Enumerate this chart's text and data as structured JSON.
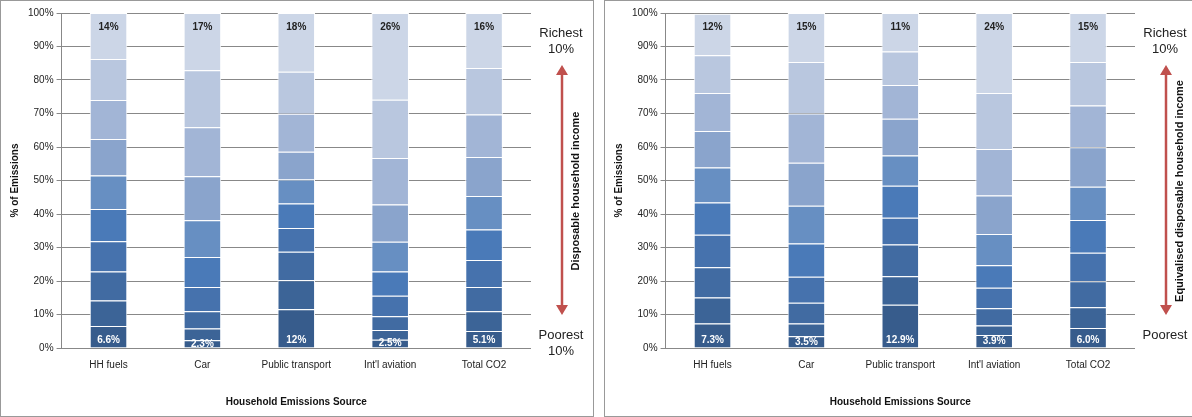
{
  "chart_data": [
    {
      "type": "bar",
      "stacked": true,
      "xlabel": "Household Emissions Source",
      "ylabel": "% of Emissions",
      "y2label": "Disposable household income",
      "annotations": [
        "Richest 10%",
        "Poorest 10%"
      ],
      "categories": [
        "HH fuels",
        "Car",
        "Public transport",
        "Int'l aviation",
        "Total CO2"
      ],
      "ylim": [
        0,
        100
      ],
      "yticks": [
        {
          "value": 0,
          "label": "0%"
        },
        {
          "value": 10,
          "label": "10%"
        },
        {
          "value": 20,
          "label": "20%"
        },
        {
          "value": 30,
          "label": "30%"
        },
        {
          "value": 40,
          "label": "40%"
        },
        {
          "value": 50,
          "label": "50%"
        },
        {
          "value": 60,
          "label": "60%"
        },
        {
          "value": 70,
          "label": "70%"
        },
        {
          "value": 80,
          "label": "80%"
        },
        {
          "value": 90,
          "label": "90%"
        },
        {
          "value": 100,
          "label": "100%"
        }
      ],
      "grid": "y",
      "legend": false,
      "series": [
        {
          "color": "#375c8c",
          "values": [
            6.6,
            2.3,
            11.6,
            2.5,
            5.1
          ],
          "value_labels": [
            "6.6%",
            "2.3%",
            "12%",
            "2.5%",
            "5.1%"
          ]
        },
        {
          "color": "#3c6497",
          "values": [
            7.6,
            3.5,
            8.6,
            2.9,
            5.9
          ]
        },
        {
          "color": "#416ba2",
          "values": [
            8.6,
            5.2,
            8.5,
            4.1,
            7.2
          ]
        },
        {
          "color": "#4672ad",
          "values": [
            9.1,
            7.2,
            7.1,
            6.1,
            8.1
          ]
        },
        {
          "color": "#4a7ab8",
          "values": [
            9.6,
            9.0,
            7.3,
            7.2,
            9.1
          ]
        },
        {
          "color": "#678fc2",
          "values": [
            10.0,
            10.9,
            7.2,
            8.9,
            10.0
          ]
        },
        {
          "color": "#8aa4cc",
          "values": [
            10.9,
            13.2,
            8.3,
            11.1,
            11.6
          ]
        },
        {
          "color": "#a2b5d6",
          "values": [
            11.6,
            14.6,
            11.3,
            13.9,
            12.7
          ]
        },
        {
          "color": "#b9c7df",
          "values": [
            12.3,
            17.0,
            12.6,
            17.4,
            13.9
          ]
        },
        {
          "color": "#ccd6e7",
          "values": [
            13.7,
            17.1,
            17.5,
            25.9,
            16.4
          ],
          "value_labels": [
            "14%",
            "17%",
            "18%",
            "26%",
            "16%"
          ]
        }
      ]
    },
    {
      "type": "bar",
      "stacked": true,
      "xlabel": "Household Emissions Source",
      "ylabel": "% of Emissions",
      "y2label": "Equivalised disposable household income",
      "annotations": [
        "Richest 10%",
        "Poorest"
      ],
      "categories": [
        "HH fuels",
        "Car",
        "Public transport",
        "Int'l aviation",
        "Total CO2"
      ],
      "ylim": [
        0,
        100
      ],
      "yticks": [
        {
          "value": 0,
          "label": "0%"
        },
        {
          "value": 10,
          "label": "10%"
        },
        {
          "value": 20,
          "label": "20%"
        },
        {
          "value": 30,
          "label": "30%"
        },
        {
          "value": 40,
          "label": "40%"
        },
        {
          "value": 50,
          "label": "50%"
        },
        {
          "value": 60,
          "label": "60%"
        },
        {
          "value": 70,
          "label": "70%"
        },
        {
          "value": 80,
          "label": "80%"
        },
        {
          "value": 90,
          "label": "90%"
        },
        {
          "value": 100,
          "label": "100%"
        }
      ],
      "grid": "y",
      "legend": false,
      "series": [
        {
          "color": "#375c8c",
          "values": [
            7.3,
            3.5,
            12.9,
            3.9,
            6.0
          ],
          "value_labels": [
            "7.3%",
            "3.5%",
            "12.9%",
            "3.9%",
            "6.0%"
          ]
        },
        {
          "color": "#3c6497",
          "values": [
            7.8,
            3.8,
            8.5,
            2.8,
            6.2
          ]
        },
        {
          "color": "#416ba2",
          "values": [
            9.0,
            6.2,
            9.5,
            5.2,
            7.7
          ]
        },
        {
          "color": "#4672ad",
          "values": [
            9.7,
            7.8,
            8.0,
            6.1,
            8.5
          ]
        },
        {
          "color": "#4a7ab8",
          "values": [
            9.6,
            9.9,
            9.5,
            6.7,
            9.8
          ]
        },
        {
          "color": "#678fc2",
          "values": [
            10.5,
            11.3,
            9.1,
            9.3,
            9.9
          ]
        },
        {
          "color": "#8aa4cc",
          "values": [
            10.9,
            12.8,
            10.9,
            11.5,
            11.8
          ]
        },
        {
          "color": "#a2b5d6",
          "values": [
            11.3,
            14.7,
            10.1,
            13.9,
            12.5
          ]
        },
        {
          "color": "#b9c7df",
          "values": [
            11.3,
            15.4,
            10.0,
            16.7,
            13.0
          ]
        },
        {
          "color": "#ccd6e7",
          "values": [
            12.4,
            14.6,
            11.5,
            23.9,
            14.6
          ],
          "value_labels": [
            "12%",
            "15%",
            "11%",
            "24%",
            "15%"
          ]
        }
      ]
    }
  ]
}
